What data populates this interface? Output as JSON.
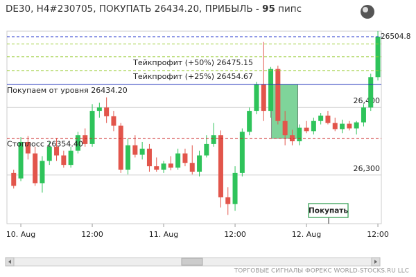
{
  "chart_data": {
    "type": "candlestick",
    "title": [
      "DE30, H4#230705, ПОКУПАТЬ 26434.20, ПРИБЫЛЬ - ",
      "95",
      " пипс"
    ],
    "categories": [
      null,
      "10. Aug",
      null,
      null,
      null,
      null,
      null,
      null,
      null,
      null,
      null,
      "12:00",
      null,
      null,
      null,
      null,
      null,
      null,
      null,
      null,
      null,
      "11. Aug",
      null,
      null,
      null,
      null,
      null,
      null,
      null,
      null,
      null,
      "12:00",
      null,
      null,
      null,
      null,
      null,
      null,
      null,
      null,
      null,
      "12. Aug",
      null,
      null,
      null,
      null,
      null,
      null,
      null,
      null,
      null,
      "12:00"
    ],
    "ohlc": [
      [
        26303,
        26308,
        26280,
        26284
      ],
      [
        26295,
        26356,
        26291,
        26349
      ],
      [
        26349,
        26358,
        26323,
        26332
      ],
      [
        26332,
        26342,
        26284,
        26288
      ],
      [
        26288,
        26328,
        26274,
        26321
      ],
      [
        26321,
        26349,
        26315,
        26342
      ],
      [
        26342,
        26354,
        26321,
        26329
      ],
      [
        26329,
        26336,
        26311,
        26315
      ],
      [
        26315,
        26342,
        26311,
        26336
      ],
      [
        26336,
        26364,
        26332,
        26359
      ],
      [
        26359,
        26369,
        26342,
        26346
      ],
      [
        26346,
        26405,
        26342,
        26395
      ],
      [
        26395,
        26407,
        26385,
        26400
      ],
      [
        26400,
        26415,
        26377,
        26387
      ],
      [
        26387,
        26395,
        26365,
        26373
      ],
      [
        26373,
        26377,
        26303,
        26308
      ],
      [
        26308,
        26354,
        26301,
        26344
      ],
      [
        26344,
        26359,
        26326,
        26330
      ],
      [
        26330,
        26349,
        26323,
        26339
      ],
      [
        26339,
        26346,
        26305,
        26313
      ],
      [
        26313,
        26326,
        26305,
        26308
      ],
      [
        26308,
        26321,
        26303,
        26317
      ],
      [
        26317,
        26328,
        26307,
        26311
      ],
      [
        26311,
        26339,
        26308,
        26332
      ],
      [
        26332,
        26339,
        26313,
        26318
      ],
      [
        26318,
        26344,
        26301,
        26305
      ],
      [
        26305,
        26336,
        26298,
        26329
      ],
      [
        26329,
        26359,
        26326,
        26346
      ],
      [
        26346,
        26377,
        26342,
        26359
      ],
      [
        26359,
        26366,
        26252,
        26267
      ],
      [
        26267,
        26282,
        26241,
        26257
      ],
      [
        26257,
        26313,
        26247,
        26303
      ],
      [
        26303,
        26369,
        26298,
        26364
      ],
      [
        26364,
        26400,
        26359,
        26395
      ],
      [
        26395,
        26438,
        26390,
        26434
      ],
      [
        26434,
        26497,
        26380,
        26395
      ],
      [
        26395,
        26460,
        26385,
        26457
      ],
      [
        26457,
        26462,
        26375,
        26380
      ],
      [
        26380,
        26395,
        26344,
        26359
      ],
      [
        26359,
        26367,
        26344,
        26350
      ],
      [
        26350,
        26375,
        26344,
        26370
      ],
      [
        26370,
        26380,
        26362,
        26365
      ],
      [
        26365,
        26385,
        26360,
        26380
      ],
      [
        26380,
        26392,
        26375,
        26388
      ],
      [
        26388,
        26395,
        26375,
        26377
      ],
      [
        26377,
        26385,
        26365,
        26368
      ],
      [
        26368,
        26382,
        26362,
        26376
      ],
      [
        26376,
        26380,
        26366,
        26369
      ],
      [
        26369,
        26380,
        26360,
        26378
      ],
      [
        26378,
        26405,
        26372,
        26400
      ],
      [
        26400,
        26450,
        26395,
        26445
      ],
      [
        26445,
        26513,
        26440,
        26504.8
      ]
    ],
    "up_color": "#2ec35a",
    "down_color": "#e2554b",
    "ylim": [
      26228,
      26513
    ],
    "yticks": [
      {
        "value": 26300,
        "label": "26,300"
      },
      {
        "value": 26400,
        "label": "26,400"
      }
    ],
    "grid": true,
    "levels": [
      {
        "value": 26494,
        "color": "#99cc33",
        "dashed": true
      },
      {
        "value": 26475.15,
        "label": "Тейкпрофит (+50%) 26475.15",
        "color": "#99cc33",
        "dashed": true
      },
      {
        "value": 26454.67,
        "label": "Тейкпрофит (+25%) 26454.67",
        "color": "#99cc33",
        "dashed": true
      },
      {
        "value": 26434.2,
        "label": "Покупаем от уровня 26434.20",
        "color": "#2233bb",
        "dashed": false
      },
      {
        "value": 26354.4,
        "label": "Стоплосс 26354.40",
        "color": "#cc2222",
        "dashed": true
      }
    ],
    "last_price": 26504.8,
    "last_price_color": "#2233cc",
    "zone_color": "#7fd49a",
    "annotation": "Покупать",
    "footer": "ТОРГОВЫЕ СИГНАЛЫ ФОРЕКС WORLD-STOCKS.RU LLC"
  }
}
